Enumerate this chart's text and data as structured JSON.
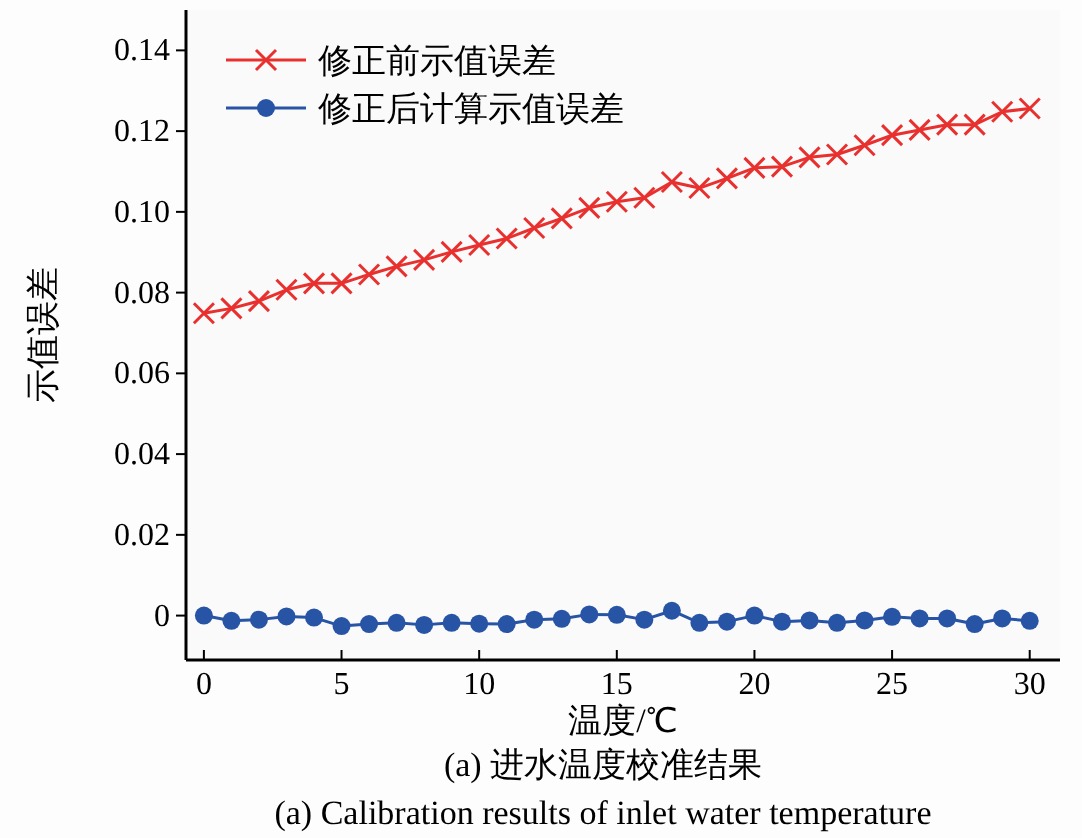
{
  "chart_data": {
    "type": "line",
    "xlabel": "温度/℃",
    "ylabel": "示值误差",
    "annotations": [
      "(a) 进水温度校准结果",
      "(a) Calibration results of inlet water temperature"
    ],
    "x": [
      0,
      1,
      2,
      3,
      4,
      5,
      6,
      7,
      8,
      9,
      10,
      11,
      12,
      13,
      14,
      15,
      16,
      17,
      18,
      19,
      20,
      21,
      22,
      23,
      24,
      25,
      26,
      27,
      28,
      29,
      30
    ],
    "xlim": [
      -0.65,
      31.1
    ],
    "xticks": [
      0,
      5,
      10,
      15,
      20,
      25,
      30
    ],
    "ylim": [
      -0.011,
      0.15
    ],
    "yticks": [
      0,
      0.02,
      0.04,
      0.06,
      0.08,
      {
        "value": 0.1,
        "label": "0.10"
      },
      0.12,
      0.14
    ],
    "legend": "top left",
    "line_style": "solid",
    "series": [
      {
        "name": "修正前示值误差",
        "color": "#e8312f",
        "marker": "cross",
        "values": [
          0.0749,
          0.0761,
          0.0779,
          0.0807,
          0.0823,
          0.0823,
          0.0845,
          0.0865,
          0.0881,
          0.0901,
          0.0918,
          0.0934,
          0.096,
          0.0984,
          0.101,
          0.1025,
          0.1035,
          0.1074,
          0.1059,
          0.1083,
          0.1109,
          0.1112,
          0.1135,
          0.1142,
          0.1165,
          0.119,
          0.1203,
          0.1216,
          0.1216,
          0.1248,
          0.1256
        ]
      },
      {
        "name": "修正后计算示值误差",
        "color": "#2854a6",
        "marker": "circle",
        "values": [
          0,
          -0.0013,
          -0.001,
          -0.0002,
          -0.0005,
          -0.0026,
          -0.0021,
          -0.0018,
          -0.0023,
          -0.0018,
          -0.002,
          -0.0021,
          -0.001,
          -0.0008,
          0.0003,
          0.0002,
          -0.001,
          0.0012,
          -0.0018,
          -0.0015,
          0,
          -0.0015,
          -0.0012,
          -0.0018,
          -0.0012,
          -0.0003,
          -0.0007,
          -0.0007,
          -0.0021,
          -0.0007,
          -0.0013
        ]
      }
    ]
  }
}
